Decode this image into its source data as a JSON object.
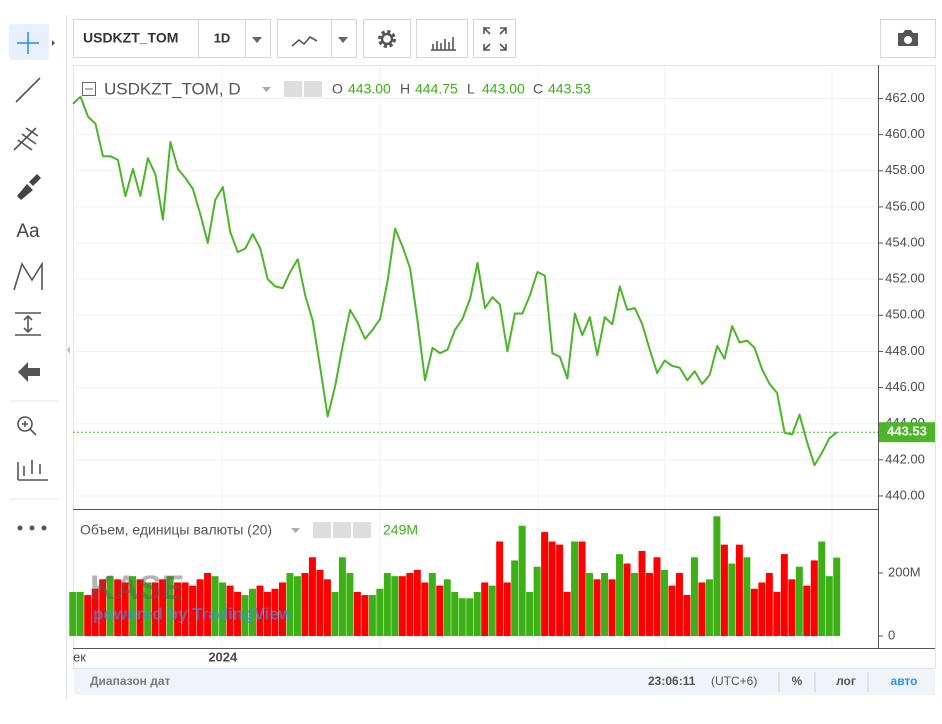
{
  "toolbar": {
    "symbol": "USDKZT_TOM",
    "interval": "1D"
  },
  "drawing_tools": {
    "text": "Aa"
  },
  "legend": {
    "title": "USDKZT_TOM, D",
    "open_label": "O",
    "open": "443.00",
    "high_label": "H",
    "high": "444.75",
    "low_label": "L",
    "low": "443.00",
    "close_label": "C",
    "close": "443.53"
  },
  "watermark": {
    "logo": "KASE",
    "caption": "powered by TradingView"
  },
  "status_bar": {
    "range": "Диапазон дат",
    "time": "23:06:11",
    "timezone": "(UTC+6)",
    "percent": "%",
    "log": "лог",
    "auto": "авто"
  },
  "chart_data": [
    {
      "type": "line",
      "categories": [
        "ек",
        null,
        null,
        null,
        null,
        null,
        null,
        null,
        null,
        null,
        null,
        null,
        null,
        null,
        null,
        null,
        null,
        null,
        null,
        null,
        "2024",
        null,
        null,
        null,
        null,
        null,
        null,
        null,
        null,
        null,
        null,
        null,
        null,
        null,
        null,
        null,
        null,
        null,
        null,
        null,
        null,
        null,
        null,
        null,
        null,
        null,
        null,
        null,
        null,
        null,
        null,
        null,
        null,
        null,
        null,
        null,
        null,
        null,
        null,
        null,
        null,
        null,
        null,
        null,
        null,
        null,
        null,
        null,
        null,
        null,
        null,
        null,
        null,
        null,
        null,
        null,
        null,
        null,
        null,
        null,
        null,
        null,
        null,
        null,
        null,
        null,
        null,
        null,
        null,
        null,
        null,
        null,
        null,
        null,
        null,
        null,
        null,
        null,
        null,
        null,
        null,
        null,
        null
      ],
      "series": [
        {
          "name": "USDKZT_TOM, D",
          "color": "#4cb52a",
          "values": [
            461.7,
            462.1,
            461.0,
            460.6,
            458.8,
            458.8,
            458.6,
            456.6,
            458.1,
            456.6,
            458.7,
            457.8,
            455.3,
            459.6,
            458.1,
            457.6,
            457.0,
            455.6,
            454.0,
            456.4,
            457.1,
            454.6,
            453.5,
            453.7,
            454.5,
            453.7,
            452.0,
            451.6,
            451.5,
            452.4,
            453.1,
            451.1,
            449.7,
            447.1,
            444.4,
            446.1,
            448.3,
            450.3,
            449.6,
            448.7,
            449.2,
            449.8,
            451.9,
            454.8,
            453.8,
            452.6,
            449.7,
            446.4,
            448.2,
            447.9,
            448.1,
            449.2,
            449.8,
            450.9,
            452.9,
            450.4,
            451.0,
            450.6,
            448.0,
            450.1,
            450.1,
            451.1,
            452.4,
            452.2,
            447.9,
            447.7,
            446.5,
            450.1,
            448.9,
            449.9,
            447.8,
            449.9,
            449.5,
            451.6,
            450.3,
            450.4,
            449.5,
            448.1,
            446.8,
            447.5,
            447.2,
            447.1,
            446.4,
            446.9,
            446.2,
            446.7,
            448.3,
            447.6,
            449.4,
            448.5,
            448.6,
            448.2,
            447.0,
            446.2,
            445.7,
            443.5,
            443.4,
            444.5,
            443.0,
            441.7,
            442.4,
            443.2,
            443.53
          ]
        }
      ],
      "ylim": [
        439.5,
        463.8
      ],
      "yticks": [
        {
          "value": 440,
          "label": "440.00"
        },
        {
          "value": 442,
          "label": "442.00"
        },
        {
          "value": 444,
          "label": "444.00"
        },
        {
          "value": 446,
          "label": "446.00"
        },
        {
          "value": 448,
          "label": "448.00"
        },
        {
          "value": 450,
          "label": "450.00"
        },
        {
          "value": 452,
          "label": "452.00"
        },
        {
          "value": 454,
          "label": "454.00"
        },
        {
          "value": 456,
          "label": "456.00"
        },
        {
          "value": 458,
          "label": "458.00"
        },
        {
          "value": 460,
          "label": "460.00"
        },
        {
          "value": 462,
          "label": "462.00"
        }
      ],
      "grid": true
    },
    {
      "type": "bar",
      "title": "Объем, единицы валюты (20)",
      "last_label": "249M",
      "up_color": "#3cb014",
      "down_color": "#ff0000",
      "values": [
        140,
        140,
        130,
        150,
        180,
        190,
        180,
        170,
        190,
        180,
        170,
        170,
        180,
        190,
        170,
        170,
        160,
        180,
        200,
        190,
        170,
        160,
        140,
        130,
        150,
        160,
        140,
        150,
        170,
        200,
        190,
        200,
        250,
        210,
        180,
        140,
        250,
        200,
        140,
        130,
        130,
        150,
        200,
        190,
        190,
        200,
        210,
        170,
        200,
        160,
        180,
        140,
        120,
        120,
        140,
        170,
        160,
        300,
        170,
        240,
        350,
        140,
        220,
        330,
        300,
        290,
        140,
        300,
        300,
        200,
        180,
        200,
        180,
        260,
        230,
        200,
        270,
        200,
        250,
        210,
        160,
        200,
        130,
        250,
        170,
        180,
        380,
        290,
        230,
        290,
        250,
        150,
        170,
        200,
        140,
        260,
        180,
        220,
        160,
        240,
        300,
        190,
        249
      ],
      "ylim": [
        -38,
        400
      ],
      "yticks": [
        0,
        {
          "value": 200,
          "label": "200M"
        }
      ],
      "grid": true
    }
  ]
}
